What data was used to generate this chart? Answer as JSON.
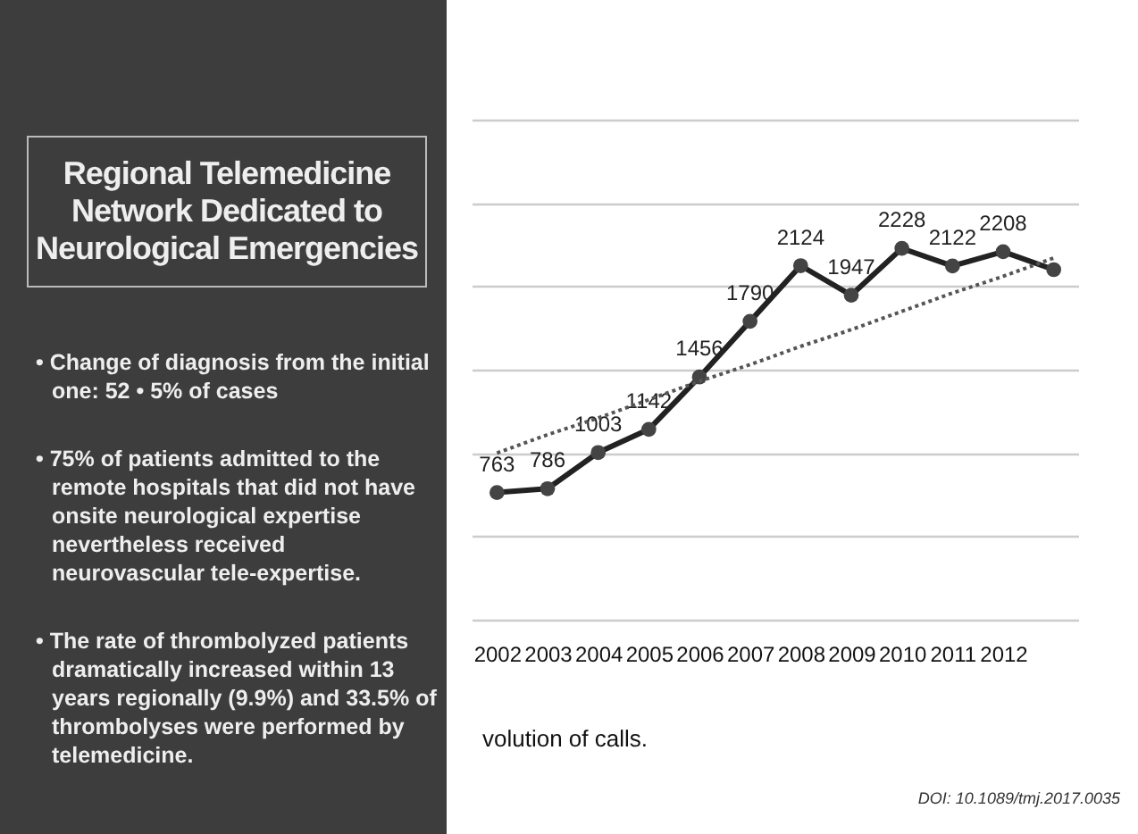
{
  "chart_data": {
    "type": "line",
    "title": "Regional Telemedicine Network Dedicated to Neurological Emergencies",
    "categories": [
      "2002",
      "2003",
      "2004",
      "2005",
      "2006",
      "2007",
      "2008",
      "2009",
      "2010",
      "2011",
      "2012",
      null
    ],
    "series": [
      {
        "type": "line",
        "color": "#222222",
        "values": [
          763,
          786,
          1003,
          1142,
          1456,
          1790,
          2124,
          1947,
          2228,
          2122,
          2208,
          2100
        ],
        "value_labels": [
          "763",
          "786",
          "1003",
          "1142",
          "1456",
          "1790",
          "2124",
          "1947",
          "2228",
          "2122",
          "2208",
          null
        ],
        "marker": "circle",
        "line_style": "solid"
      },
      {
        "type": "line",
        "values": [
          1000,
          1110,
          1210,
          1320,
          1430,
          1530,
          1640,
          1740,
          1850,
          1960,
          2060,
          2170
        ],
        "color": "#555555",
        "marker": "none",
        "line_style": "dotted"
      }
    ],
    "ylim": [
      0,
      3000
    ],
    "yticks": [
      {
        "value": 0,
        "label": null
      },
      {
        "value": 500,
        "label": null
      },
      {
        "value": 1000,
        "label": null
      },
      {
        "value": 1500,
        "label": null
      },
      {
        "value": 2000,
        "label": null
      },
      {
        "value": 2500,
        "label": null
      },
      {
        "value": 3000,
        "label": null
      }
    ],
    "grid": "y",
    "annotations": [
      "• Change of diagnosis from the initial one: 52 • 5% of cases",
      "• 75% of patients admitted to the remote hospitals that did not have onsite neurological expertise nevertheless received neurovascular tele-expertise.",
      "• The rate of thrombolyzed patients dramatically increased within 13 years regionally (9.9%) and 33.5% of thrombolyses were performed by telemedicine.",
      "volution of calls.",
      "DOI: 10.1089/tmj.2017.0035"
    ]
  }
}
